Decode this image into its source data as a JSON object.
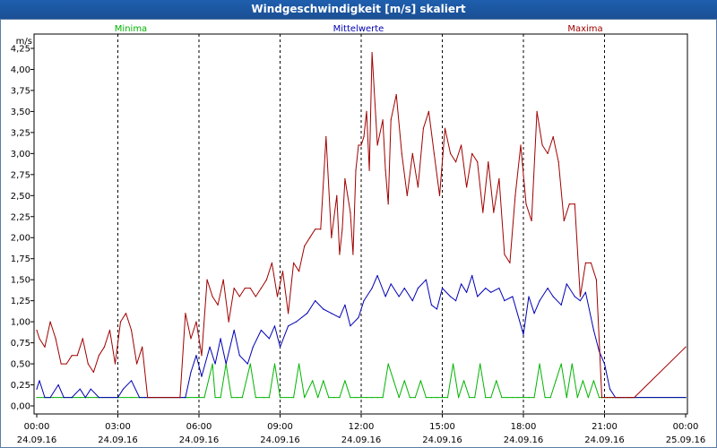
{
  "chart_data": {
    "type": "line",
    "title": "Windgeschwindigkeit [m/s] skaliert",
    "ylabel": "m/s",
    "ylim": [
      0,
      4.25
    ],
    "y_ticks": [
      "0,00",
      "0,25",
      "0,50",
      "0,75",
      "1,00",
      "1,25",
      "1,50",
      "1,75",
      "2,00",
      "2,25",
      "2,50",
      "2,75",
      "3,00",
      "3,25",
      "3,50",
      "3,75",
      "4,00",
      "4,25"
    ],
    "x_range_hours": [
      0,
      24
    ],
    "x_ticks": [
      {
        "time": "00:00",
        "date": "24.09.16"
      },
      {
        "time": "03:00",
        "date": "24.09.16"
      },
      {
        "time": "06:00",
        "date": "24.09.16"
      },
      {
        "time": "09:00",
        "date": "24.09.16"
      },
      {
        "time": "12:00",
        "date": "24.09.16"
      },
      {
        "time": "15:00",
        "date": "24.09.16"
      },
      {
        "time": "18:00",
        "date": "24.09.16"
      },
      {
        "time": "21:00",
        "date": "24.09.16"
      },
      {
        "time": "00:00",
        "date": "25.09.16"
      }
    ],
    "series": [
      {
        "name": "Minima",
        "color": "#00b400",
        "legend_position": "left",
        "x": [
          0,
          0.4,
          0.6,
          0.9,
          1.3,
          1.6,
          1.9,
          2.2,
          3.0,
          3.5,
          5.5,
          5.6,
          5.9,
          6.0,
          6.2,
          6.5,
          6.6,
          6.8,
          7.0,
          7.2,
          7.4,
          7.6,
          7.9,
          8.1,
          8.4,
          8.6,
          8.8,
          9.0,
          9.5,
          9.6,
          9.7,
          9.9,
          10.2,
          10.4,
          10.6,
          10.8,
          11.0,
          11.2,
          11.4,
          11.6,
          11.8,
          12.0,
          12.2,
          12.4,
          12.6,
          12.8,
          13.0,
          13.2,
          13.4,
          13.6,
          13.8,
          14.0,
          14.2,
          14.4,
          14.6,
          14.8,
          15.0,
          15.2,
          15.4,
          15.6,
          15.8,
          16.0,
          16.2,
          16.4,
          16.6,
          16.8,
          17.0,
          17.2,
          17.4,
          17.6,
          17.8,
          18.0,
          18.2,
          18.4,
          18.6,
          18.8,
          19.0,
          19.2,
          19.4,
          19.6,
          19.8,
          20.0,
          20.2,
          20.4,
          20.6,
          20.8,
          21.0,
          21.2,
          21.5,
          24.0
        ],
        "values": [
          0.1,
          0.1,
          0.1,
          0.1,
          0.1,
          0.1,
          0.1,
          0.1,
          0.1,
          0.1,
          0.1,
          0.1,
          0.1,
          0.1,
          0.1,
          0.5,
          0.1,
          0.1,
          0.5,
          0.1,
          0.1,
          0.1,
          0.5,
          0.1,
          0.1,
          0.1,
          0.5,
          0.1,
          0.1,
          0.3,
          0.5,
          0.1,
          0.3,
          0.1,
          0.3,
          0.1,
          0.1,
          0.1,
          0.3,
          0.1,
          0.1,
          0.1,
          0.1,
          0.1,
          0.1,
          0.1,
          0.5,
          0.3,
          0.1,
          0.3,
          0.1,
          0.1,
          0.3,
          0.1,
          0.1,
          0.1,
          0.1,
          0.1,
          0.5,
          0.1,
          0.3,
          0.1,
          0.1,
          0.5,
          0.1,
          0.1,
          0.3,
          0.1,
          0.1,
          0.1,
          0.1,
          0.1,
          0.1,
          0.1,
          0.5,
          0.1,
          0.1,
          0.3,
          0.5,
          0.1,
          0.5,
          0.1,
          0.3,
          0.1,
          0.3,
          0.1,
          0.1,
          0.1,
          0.1,
          0.1
        ]
      },
      {
        "name": "Mittelwerte",
        "color": "#0000b4",
        "legend_position": "center",
        "x": [
          0,
          0.1,
          0.3,
          0.5,
          0.8,
          1.0,
          1.3,
          1.6,
          1.8,
          2.0,
          2.3,
          3.0,
          3.2,
          3.5,
          3.8,
          4.0,
          4.2,
          5.5,
          5.7,
          5.9,
          6.1,
          6.4,
          6.6,
          6.8,
          7.0,
          7.3,
          7.5,
          7.8,
          8.0,
          8.3,
          8.6,
          8.8,
          9.0,
          9.3,
          9.6,
          9.8,
          10.0,
          10.3,
          10.6,
          10.9,
          11.2,
          11.4,
          11.6,
          11.9,
          12.1,
          12.4,
          12.6,
          12.9,
          13.1,
          13.4,
          13.6,
          13.9,
          14.1,
          14.4,
          14.6,
          14.8,
          15.0,
          15.3,
          15.5,
          15.7,
          15.9,
          16.1,
          16.3,
          16.6,
          16.8,
          17.1,
          17.3,
          17.6,
          18.0,
          18.2,
          18.4,
          18.6,
          18.9,
          19.1,
          19.4,
          19.6,
          19.9,
          20.1,
          20.3,
          20.6,
          20.8,
          21.0,
          21.2,
          21.4,
          21.6,
          22.0,
          24.0
        ],
        "values": [
          0.2,
          0.3,
          0.1,
          0.1,
          0.25,
          0.1,
          0.1,
          0.2,
          0.1,
          0.2,
          0.1,
          0.1,
          0.2,
          0.3,
          0.1,
          0.1,
          0.1,
          0.1,
          0.4,
          0.6,
          0.35,
          0.7,
          0.5,
          0.8,
          0.5,
          0.9,
          0.6,
          0.5,
          0.7,
          0.9,
          0.8,
          0.95,
          0.7,
          0.95,
          1.0,
          1.05,
          1.1,
          1.25,
          1.15,
          1.1,
          1.05,
          1.2,
          0.95,
          1.05,
          1.25,
          1.4,
          1.55,
          1.3,
          1.45,
          1.3,
          1.4,
          1.25,
          1.4,
          1.5,
          1.2,
          1.15,
          1.4,
          1.3,
          1.25,
          1.45,
          1.35,
          1.55,
          1.3,
          1.4,
          1.35,
          1.4,
          1.25,
          1.3,
          0.85,
          1.3,
          1.1,
          1.25,
          1.4,
          1.3,
          1.2,
          1.45,
          1.3,
          1.25,
          1.35,
          0.9,
          0.65,
          0.5,
          0.2,
          0.1,
          0.1,
          0.1,
          0.1
        ]
      },
      {
        "name": "Maxima",
        "color": "#a00000",
        "legend_position": "right",
        "x": [
          0,
          0.1,
          0.3,
          0.5,
          0.7,
          0.9,
          1.1,
          1.3,
          1.5,
          1.7,
          1.9,
          2.1,
          2.3,
          2.5,
          2.7,
          2.9,
          3.1,
          3.3,
          3.5,
          3.7,
          3.9,
          4.1,
          5.3,
          5.5,
          5.7,
          5.9,
          6.1,
          6.3,
          6.5,
          6.7,
          6.9,
          7.1,
          7.3,
          7.5,
          7.7,
          7.9,
          8.1,
          8.3,
          8.5,
          8.7,
          8.9,
          9.1,
          9.3,
          9.5,
          9.7,
          9.9,
          10.1,
          10.3,
          10.5,
          10.7,
          10.9,
          11.1,
          11.2,
          11.3,
          11.4,
          11.5,
          11.6,
          11.7,
          11.8,
          11.9,
          12.0,
          12.1,
          12.2,
          12.3,
          12.4,
          12.6,
          12.8,
          12.9,
          13.0,
          13.1,
          13.3,
          13.5,
          13.7,
          13.9,
          14.1,
          14.3,
          14.5,
          14.7,
          14.9,
          15.1,
          15.3,
          15.5,
          15.7,
          15.9,
          16.1,
          16.3,
          16.5,
          16.7,
          16.9,
          17.1,
          17.3,
          17.5,
          17.7,
          17.9,
          18.1,
          18.3,
          18.5,
          18.7,
          18.9,
          19.1,
          19.3,
          19.5,
          19.7,
          19.9,
          20.1,
          20.3,
          20.5,
          20.7,
          20.9,
          21.1,
          21.3,
          21.5,
          21.7,
          21.9,
          22.1,
          24.0
        ],
        "values": [
          0.9,
          0.8,
          0.7,
          1.0,
          0.8,
          0.5,
          0.5,
          0.6,
          0.6,
          0.8,
          0.5,
          0.4,
          0.6,
          0.7,
          0.9,
          0.5,
          1.0,
          1.1,
          0.9,
          0.5,
          0.7,
          0.1,
          0.1,
          1.1,
          0.8,
          1.0,
          0.6,
          1.5,
          1.3,
          1.2,
          1.5,
          1.0,
          1.4,
          1.3,
          1.4,
          1.4,
          1.3,
          1.4,
          1.5,
          1.7,
          1.3,
          1.6,
          1.1,
          1.7,
          1.6,
          1.9,
          2.0,
          2.1,
          2.1,
          3.2,
          2.0,
          2.5,
          1.8,
          2.1,
          2.7,
          2.5,
          2.3,
          1.8,
          2.8,
          3.1,
          3.1,
          3.2,
          3.5,
          2.8,
          4.2,
          3.1,
          3.4,
          2.8,
          2.4,
          3.4,
          3.7,
          3.0,
          2.5,
          3.0,
          2.6,
          3.3,
          3.5,
          3.0,
          2.5,
          3.3,
          3.0,
          2.9,
          3.1,
          2.6,
          3.0,
          2.9,
          2.3,
          2.9,
          2.3,
          2.7,
          1.8,
          1.7,
          2.5,
          3.1,
          2.4,
          2.2,
          3.5,
          3.1,
          3.0,
          3.2,
          2.9,
          2.2,
          2.4,
          2.4,
          1.3,
          1.7,
          1.7,
          1.5,
          0.1,
          0.1,
          0.1,
          0.1,
          0.1,
          0.1,
          0.1,
          0.7
        ]
      }
    ]
  }
}
